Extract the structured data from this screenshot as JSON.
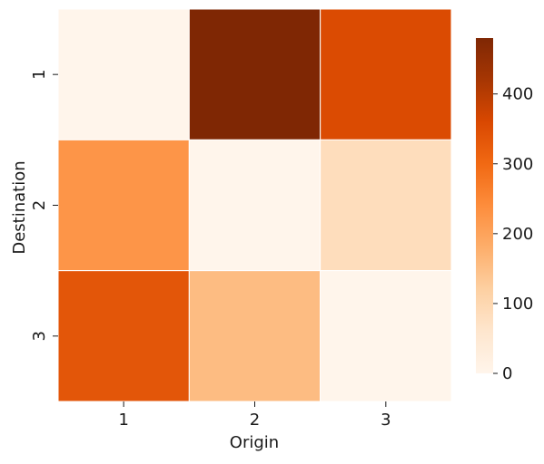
{
  "chart_data": {
    "type": "heatmap",
    "title": "",
    "xlabel": "Origin",
    "ylabel": "Destination",
    "x_categories": [
      "1",
      "2",
      "3"
    ],
    "y_categories": [
      "1",
      "2",
      "3"
    ],
    "matrix": [
      [
        0,
        480,
        355
      ],
      [
        225,
        0,
        85
      ],
      [
        335,
        155,
        0
      ]
    ],
    "colorbar": {
      "min": 0,
      "max": 480,
      "ticks": [
        0,
        100,
        200,
        300,
        400
      ],
      "tick_labels": [
        "0",
        "100",
        "200",
        "300",
        "400"
      ],
      "colormap": "Oranges",
      "stops": [
        "#fff5eb",
        "#fee6ce",
        "#fdd0a2",
        "#fdae6b",
        "#fd8d3c",
        "#f16913",
        "#d94801",
        "#a63603",
        "#7f2704"
      ]
    },
    "grid_line_color": "#ffffff"
  }
}
